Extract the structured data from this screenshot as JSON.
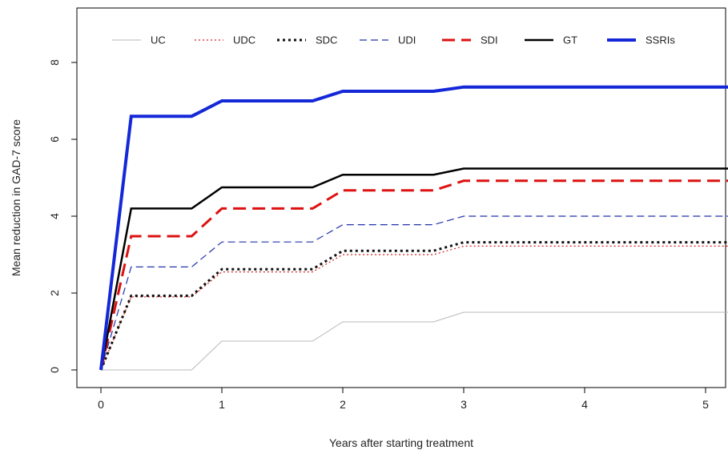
{
  "chart_data": {
    "type": "line",
    "title": "",
    "xlabel": "Years after starting treatment",
    "ylabel": "Mean reduction in GAD-7 score",
    "xlim": [
      0,
      5.2
    ],
    "ylim": [
      0,
      9.2
    ],
    "xticks": [
      0,
      1,
      2,
      3,
      4,
      5
    ],
    "yticks": [
      0,
      2,
      4,
      6,
      8
    ],
    "grid": false,
    "legend_position": "top",
    "x": [
      0,
      0.25,
      0.75,
      1,
      1.75,
      2,
      2.75,
      3,
      5.2
    ],
    "series": [
      {
        "name": "UC",
        "color": "#b8b8b8",
        "dash": "solid",
        "width": 1,
        "values": [
          0,
          0,
          0,
          0.75,
          0.75,
          1.25,
          1.25,
          1.5,
          1.5
        ]
      },
      {
        "name": "UDC",
        "color": "#d62020",
        "dash": "dotted",
        "width": 1.2,
        "values": [
          0,
          1.9,
          1.9,
          2.55,
          2.55,
          3.0,
          3.0,
          3.22,
          3.22
        ]
      },
      {
        "name": "SDC",
        "color": "#111111",
        "dash": "dotted-bold",
        "width": 3,
        "values": [
          0,
          1.93,
          1.93,
          2.62,
          2.62,
          3.1,
          3.1,
          3.32,
          3.32
        ]
      },
      {
        "name": "UDI",
        "color": "#2233aa",
        "dash": "dashed",
        "width": 1.2,
        "values": [
          0,
          2.68,
          2.68,
          3.33,
          3.33,
          3.78,
          3.78,
          4.0,
          4.0
        ]
      },
      {
        "name": "SDI",
        "color": "#dd1111",
        "dash": "longdash",
        "width": 3,
        "values": [
          0,
          3.48,
          3.48,
          4.2,
          4.2,
          4.67,
          4.67,
          4.92,
          4.92
        ]
      },
      {
        "name": "GT",
        "color": "#000000",
        "dash": "solid",
        "width": 2.5,
        "values": [
          0,
          4.2,
          4.2,
          4.75,
          4.75,
          5.08,
          5.08,
          5.24,
          5.24
        ]
      },
      {
        "name": "SSRIs",
        "color": "#1428d8",
        "dash": "solid",
        "width": 4,
        "values": [
          0,
          6.6,
          6.6,
          7.0,
          7.0,
          7.25,
          7.25,
          7.36,
          7.36
        ]
      }
    ]
  }
}
